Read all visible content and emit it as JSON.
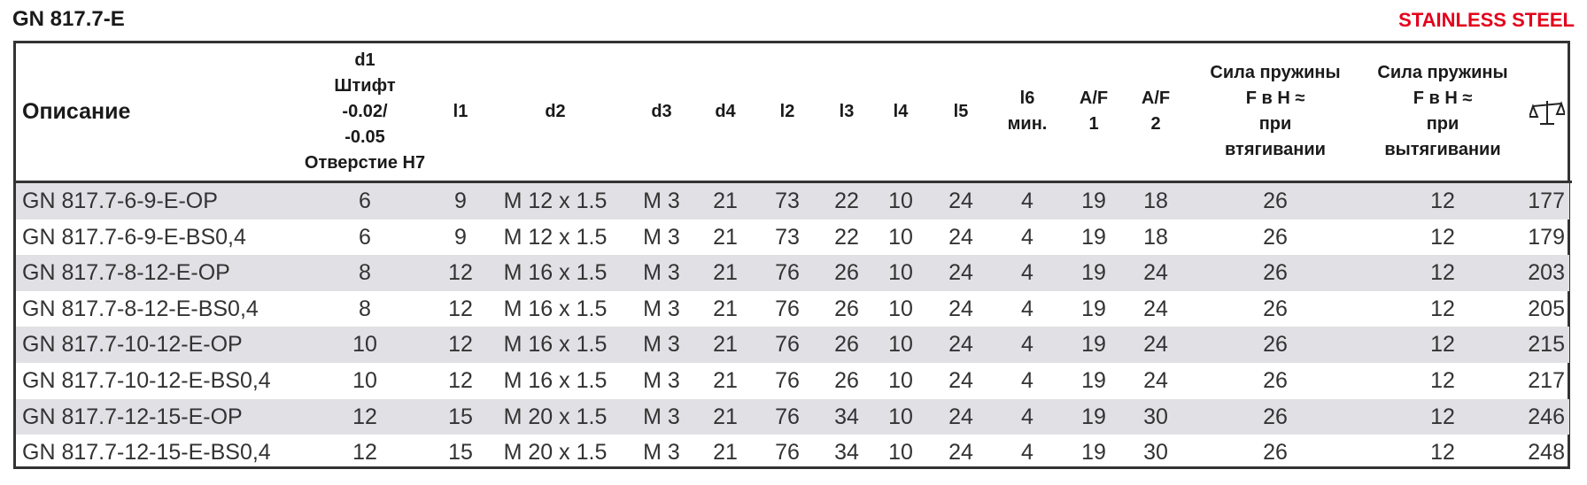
{
  "header": {
    "title": "GN 817.7-E",
    "badge": "STAINLESS STEEL"
  },
  "table": {
    "columns": [
      [
        "Описание"
      ],
      [
        "d1",
        "Штифт",
        "-0.02/",
        "-0.05",
        "Отверстие H7"
      ],
      [
        "l1"
      ],
      [
        "d2"
      ],
      [
        "d3"
      ],
      [
        "d4"
      ],
      [
        "l2"
      ],
      [
        "l3"
      ],
      [
        "l4"
      ],
      [
        "l5"
      ],
      [
        "l6",
        "мин."
      ],
      [
        "A/F",
        "1"
      ],
      [
        "A/F",
        "2"
      ],
      [
        "Сила пружины",
        "F в H ≈",
        "при",
        "втягивании"
      ],
      [
        "Сила пружины",
        "F в H ≈",
        "при",
        "вытягивании"
      ],
      []
    ],
    "rows": [
      [
        "GN 817.7-6-9-E-OP",
        6,
        9,
        "M 12 x 1.5",
        "M 3",
        21,
        73,
        22,
        10,
        24,
        4,
        19,
        18,
        26,
        12,
        177
      ],
      [
        "GN 817.7-6-9-E-BS0,4",
        6,
        9,
        "M 12 x 1.5",
        "M 3",
        21,
        73,
        22,
        10,
        24,
        4,
        19,
        18,
        26,
        12,
        179
      ],
      [
        "GN 817.7-8-12-E-OP",
        8,
        12,
        "M 16 x 1.5",
        "M 3",
        21,
        76,
        26,
        10,
        24,
        4,
        19,
        24,
        26,
        12,
        203
      ],
      [
        "GN 817.7-8-12-E-BS0,4",
        8,
        12,
        "M 16 x 1.5",
        "M 3",
        21,
        76,
        26,
        10,
        24,
        4,
        19,
        24,
        26,
        12,
        205
      ],
      [
        "GN 817.7-10-12-E-OP",
        10,
        12,
        "M 16 x 1.5",
        "M 3",
        21,
        76,
        26,
        10,
        24,
        4,
        19,
        24,
        26,
        12,
        215
      ],
      [
        "GN 817.7-10-12-E-BS0,4",
        10,
        12,
        "M 16 x 1.5",
        "M 3",
        21,
        76,
        26,
        10,
        24,
        4,
        19,
        24,
        26,
        12,
        217
      ],
      [
        "GN 817.7-12-15-E-OP",
        12,
        15,
        "M 20 x 1.5",
        "M 3",
        21,
        76,
        34,
        10,
        24,
        4,
        19,
        30,
        26,
        12,
        246
      ],
      [
        "GN 817.7-12-15-E-BS0,4",
        12,
        15,
        "M 20 x 1.5",
        "M 3",
        21,
        76,
        34,
        10,
        24,
        4,
        19,
        30,
        26,
        12,
        248
      ]
    ]
  }
}
